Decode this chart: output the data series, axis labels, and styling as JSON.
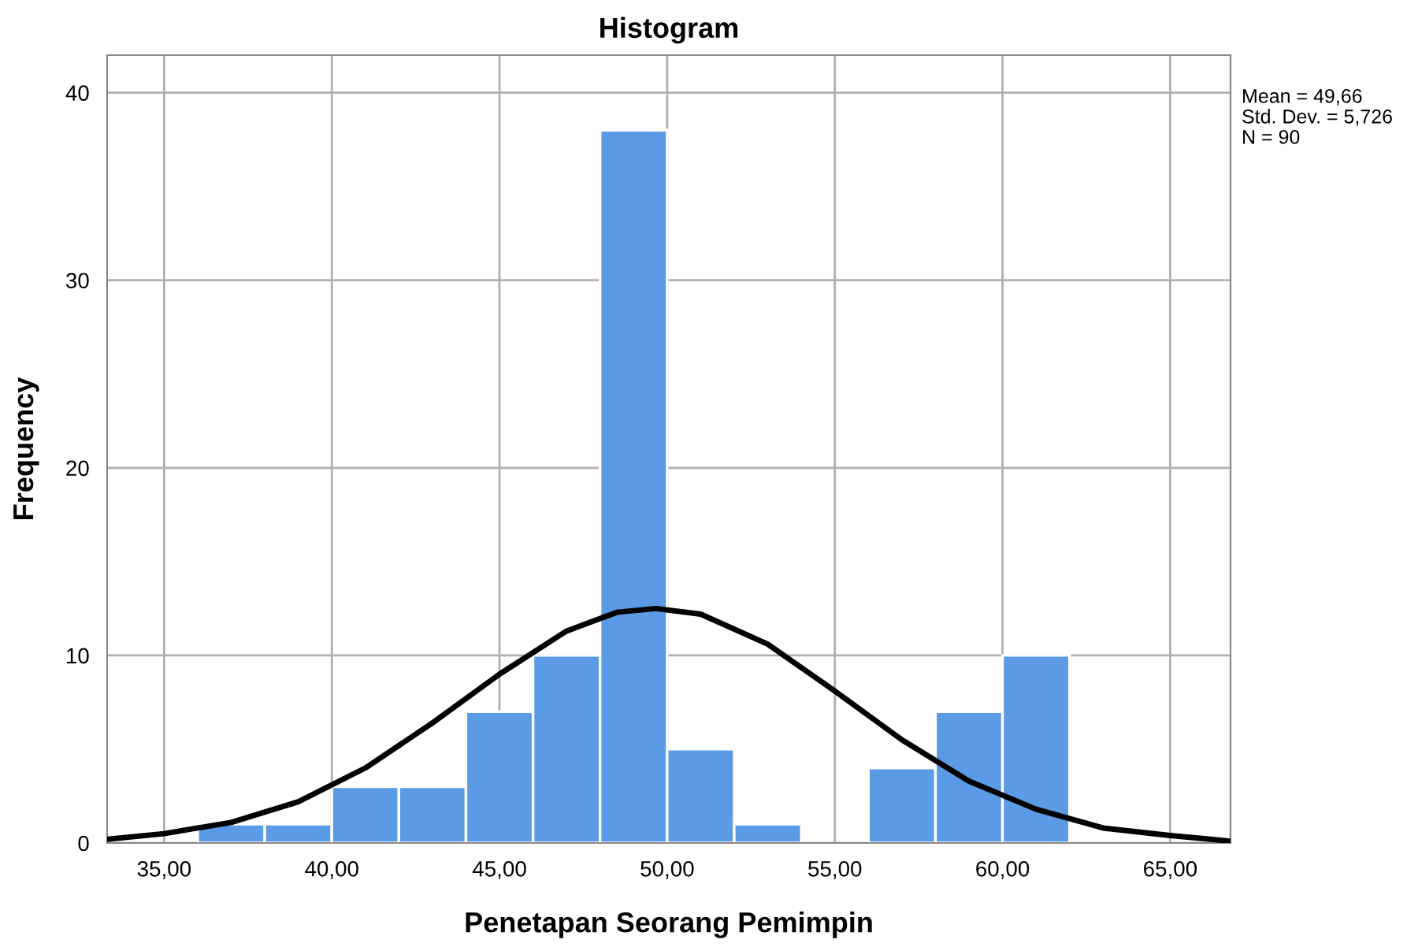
{
  "chart_data": {
    "type": "histogram",
    "title": "Histogram",
    "xlabel": "Penetapan Seorang Pemimpin",
    "ylabel": "Frequency",
    "bins": [
      36,
      38,
      40,
      42,
      44,
      46,
      48,
      50,
      52,
      54,
      56,
      58,
      60,
      62
    ],
    "values": [
      1,
      1,
      3,
      3,
      7,
      10,
      38,
      5,
      1,
      0,
      4,
      7,
      10
    ],
    "color": "#5b9be6",
    "series": [
      {
        "type": "line",
        "color": "#000000",
        "x": [
          33.3,
          35,
          37,
          39,
          41,
          43,
          45,
          47,
          48.5,
          49.66,
          51,
          53,
          55,
          57,
          59,
          61,
          63,
          65,
          66.8
        ],
        "values": [
          0.2,
          0.5,
          1.1,
          2.2,
          4.0,
          6.4,
          9.0,
          11.3,
          12.3,
          12.5,
          12.2,
          10.6,
          8.1,
          5.5,
          3.3,
          1.8,
          0.8,
          0.4,
          0.1
        ]
      }
    ],
    "xlim": [
      33.3,
      66.8
    ],
    "xticks": [
      {
        "value": 35,
        "label": "35,00"
      },
      {
        "value": 40,
        "label": "40,00"
      },
      {
        "value": 45,
        "label": "45,00"
      },
      {
        "value": 50,
        "label": "50,00"
      },
      {
        "value": 55,
        "label": "55,00"
      },
      {
        "value": 60,
        "label": "60,00"
      },
      {
        "value": 65,
        "label": "65,00"
      }
    ],
    "ylim": [
      0,
      42
    ],
    "yticks": [
      0,
      10,
      20,
      30,
      40
    ],
    "grid": true,
    "annotations": [
      "Mean = 49,66",
      "Std. Dev. = 5,726",
      "N = 90"
    ]
  }
}
